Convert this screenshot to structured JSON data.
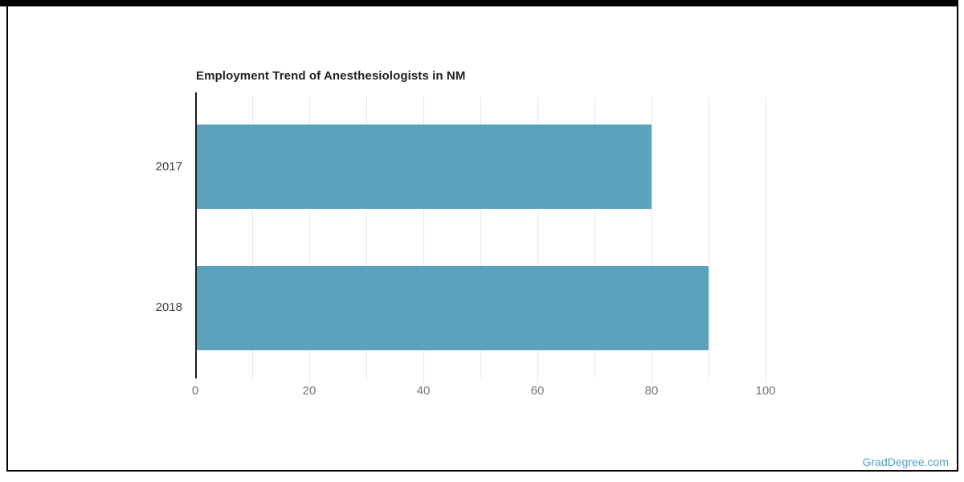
{
  "chart_data": {
    "type": "bar",
    "orientation": "horizontal",
    "title": "Employment Trend of Anesthesiologists in NM",
    "categories": [
      "2017",
      "2018"
    ],
    "values": [
      80,
      90
    ],
    "xlabel": "",
    "ylabel": "",
    "xlim": [
      0,
      110
    ],
    "xticks": [
      0,
      20,
      40,
      60,
      80,
      100
    ],
    "gridline_step": 10,
    "grid": true,
    "legend": "none"
  },
  "watermark": "GradDegree.com",
  "colors": {
    "bar": "#5ba2bc",
    "grid": "#e6e6e6",
    "axis": "#1c1c1c",
    "tick-label": "#757575",
    "cat-label": "#424242",
    "title": "#212121",
    "watermark": "#54a1c2",
    "frame": "#000000"
  }
}
